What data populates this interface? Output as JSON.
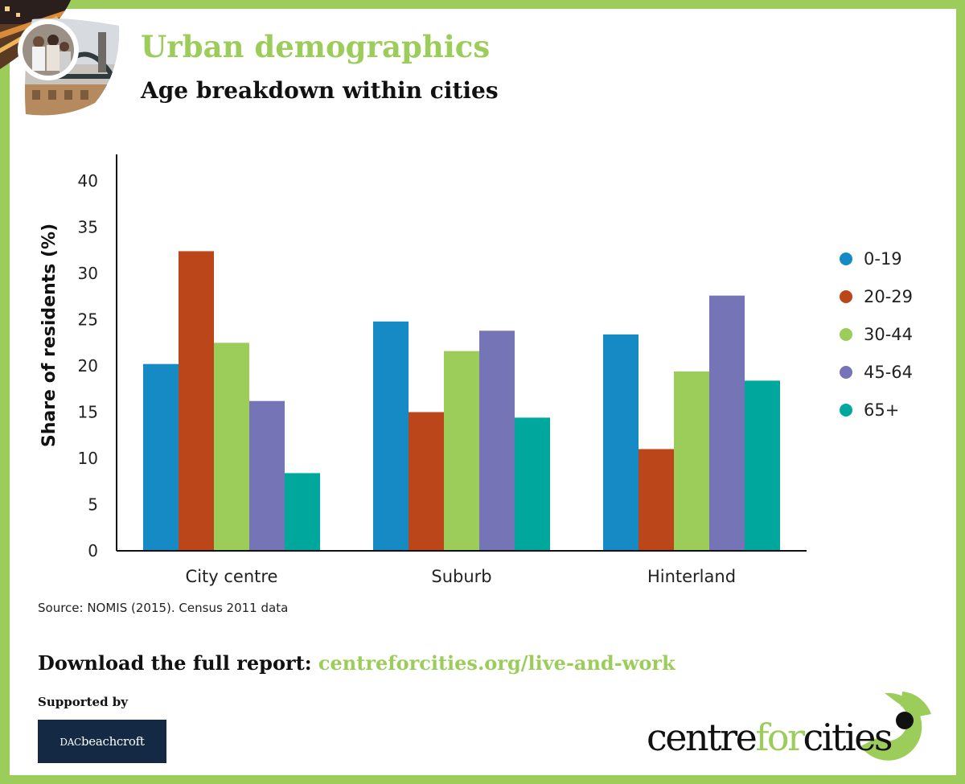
{
  "header": {
    "title": "Urban demographics",
    "subtitle": "Age breakdown within cities"
  },
  "chart_data": {
    "type": "bar",
    "title": "Age breakdown within cities",
    "xlabel": "",
    "ylabel": "Share of residents (%)",
    "ylim": [
      0,
      40
    ],
    "yticks": [
      0,
      5,
      10,
      15,
      20,
      25,
      30,
      35,
      40
    ],
    "grid": false,
    "legend_position": "right",
    "categories": [
      "City centre",
      "Suburb",
      "Hinterland"
    ],
    "series": [
      {
        "name": "0-19",
        "color": "#158ac4",
        "values": [
          20.2,
          24.8,
          23.4
        ]
      },
      {
        "name": "20-29",
        "color": "#bb461a",
        "values": [
          32.4,
          15.0,
          11.0
        ]
      },
      {
        "name": "30-44",
        "color": "#9ccd5b",
        "values": [
          22.5,
          21.6,
          19.4
        ]
      },
      {
        "name": "45-64",
        "color": "#7574b7",
        "values": [
          16.2,
          23.8,
          27.6
        ]
      },
      {
        "name": "65+",
        "color": "#00a79d",
        "values": [
          8.4,
          14.4,
          18.4
        ]
      }
    ]
  },
  "source": "Source: NOMIS (2015). Census 2011 data",
  "download": {
    "prefix": "Download the full report: ",
    "link": "centreforcities.org/live-and-work"
  },
  "supported_by": "Supported by",
  "sponsor": {
    "name_a": "DAC",
    "name_b": "beachcroft"
  },
  "brand": {
    "part1": "centre",
    "part2": "for",
    "part3": "cities"
  },
  "colors": {
    "accent": "#9ccd5b",
    "sponsor_bg": "#142a44"
  }
}
